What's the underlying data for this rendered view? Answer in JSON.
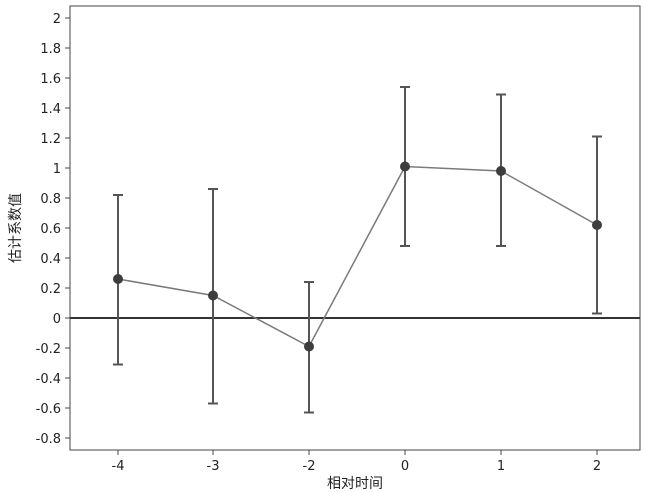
{
  "chart_data": {
    "type": "line",
    "title": "",
    "xlabel": "相对时间",
    "ylabel": "估计系数值",
    "x": [
      -4,
      -3,
      -2,
      0,
      1,
      2
    ],
    "xticks": [
      -4,
      -3,
      -2,
      0,
      1,
      2
    ],
    "xtick_labels": [
      "-4",
      "-3",
      "-2",
      "0",
      "1",
      "2"
    ],
    "yticks": [
      2,
      1.8,
      1.6,
      1.4,
      1.2,
      1,
      0.8,
      0.6,
      0.4,
      0.2,
      0,
      -0.2,
      -0.4,
      -0.6,
      -0.8
    ],
    "ytick_labels": [
      "2",
      "1.8",
      "1.6",
      "1.4",
      "1.2",
      "1",
      "0.8",
      "0.6",
      "0.4",
      "0.2",
      "0",
      "-0.2",
      "-0.4",
      "-0.6",
      "-0.8"
    ],
    "ylim": [
      -0.88,
      2.06
    ],
    "reference_line_y": 0,
    "series": [
      {
        "values": [
          0.26,
          0.15,
          -0.19,
          1.01,
          0.98,
          0.62
        ],
        "upper": [
          0.82,
          0.86,
          0.24,
          1.54,
          1.49,
          1.21
        ],
        "lower": [
          -0.31,
          -0.57,
          -0.63,
          0.48,
          0.48,
          0.03
        ]
      }
    ],
    "grid": false,
    "colors": {
      "line": "#7a7a7a",
      "marker": "#3d3d3d",
      "errorbar": "#555555",
      "axis": "#444444"
    }
  }
}
